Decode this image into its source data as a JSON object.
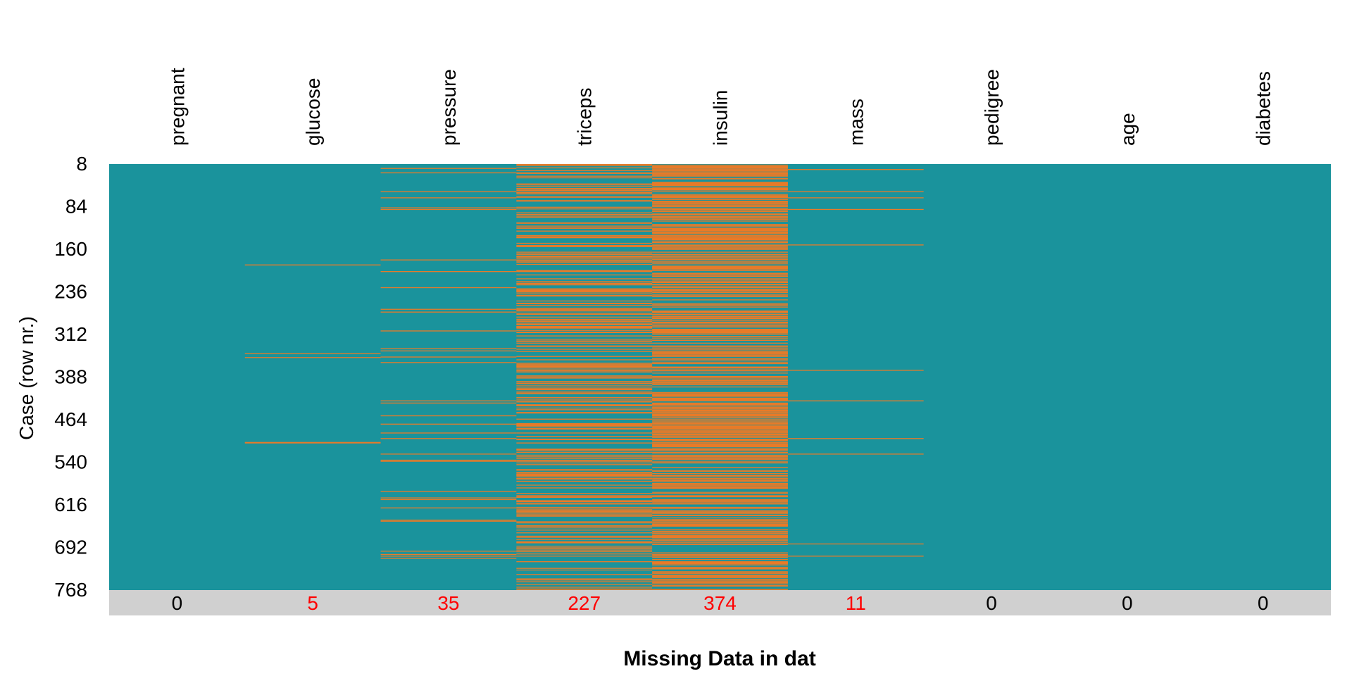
{
  "chart_data": {
    "type": "heatmap",
    "title": "",
    "xlabel": "Missing Data in dat",
    "ylabel": "Case (row nr.)",
    "columns": [
      "pregnant",
      "glucose",
      "pressure",
      "triceps",
      "insulin",
      "mass",
      "pedigree",
      "age",
      "diabetes"
    ],
    "missing_counts": [
      0,
      5,
      35,
      227,
      374,
      11,
      0,
      0,
      0
    ],
    "n_rows": 768,
    "y_ticks": [
      8,
      84,
      160,
      236,
      312,
      388,
      464,
      540,
      616,
      692,
      768
    ],
    "missing_rows": {
      "glucose": [
        182,
        342,
        349,
        502,
        503
      ],
      "pressure": [
        8,
        16,
        50,
        61,
        79,
        82,
        173,
        194,
        223,
        262,
        267,
        301,
        333,
        337,
        348,
        358,
        427,
        431,
        454,
        469,
        485,
        495,
        523,
        534,
        536,
        590,
        602,
        605,
        620,
        642,
        644,
        698,
        704,
        707,
        711
      ],
      "triceps": {
        "count": 227
      },
      "insulin": {
        "count": 374
      },
      "mass": [
        10,
        50,
        61,
        82,
        146,
        372,
        427,
        495,
        523,
        685,
        707
      ]
    },
    "colors": {
      "present": "#1a939c",
      "missing": "#e87b28",
      "count_bar": "#d0d0d0",
      "count_zero": "#000000",
      "count_nonzero": "#ff0000"
    },
    "legend": "none"
  }
}
